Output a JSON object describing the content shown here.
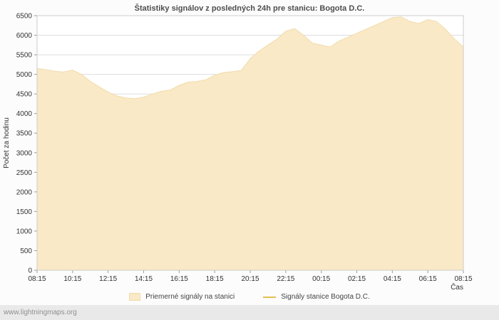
{
  "page": {
    "watermark": "www.lightningmaps.org"
  },
  "chart_data": {
    "type": "area",
    "title": "Štatistiky signálov z posledných 24h pre stanicu: Bogota D.C.",
    "xlabel": "Čas",
    "ylabel": "Počet za hodinu",
    "ylim": [
      0,
      6500
    ],
    "ytick_step": 500,
    "grid": "horizontal",
    "legend_position": "bottom",
    "x_ticks": [
      "08:15",
      "10:15",
      "12:15",
      "14:15",
      "16:15",
      "18:15",
      "20:15",
      "22:15",
      "00:15",
      "02:15",
      "04:15",
      "06:15",
      "08:15"
    ],
    "x_interval_minutes": 30,
    "series": [
      {
        "name": "Priemerné signály na stanici",
        "type": "area",
        "color": "#fae9c6",
        "edge_color": "#f0dcab",
        "values": [
          5150,
          5120,
          5080,
          5060,
          5110,
          5000,
          4820,
          4680,
          4550,
          4450,
          4400,
          4380,
          4420,
          4500,
          4570,
          4600,
          4720,
          4800,
          4820,
          4860,
          4980,
          5050,
          5070,
          5100,
          5400,
          5600,
          5750,
          5900,
          6100,
          6170,
          6000,
          5800,
          5750,
          5700,
          5850,
          5950,
          6050,
          6150,
          6250,
          6350,
          6450,
          6470,
          6350,
          6300,
          6400,
          6350,
          6150,
          5900,
          5700
        ]
      },
      {
        "name": "Signály stanice Bogota D.C.",
        "type": "line",
        "color": "#e3c04f",
        "values": []
      }
    ],
    "colors": {
      "plot_bg": "#ffffff",
      "grid": "#dddddd",
      "axis": "#cccccc",
      "tick": "#999999"
    }
  }
}
